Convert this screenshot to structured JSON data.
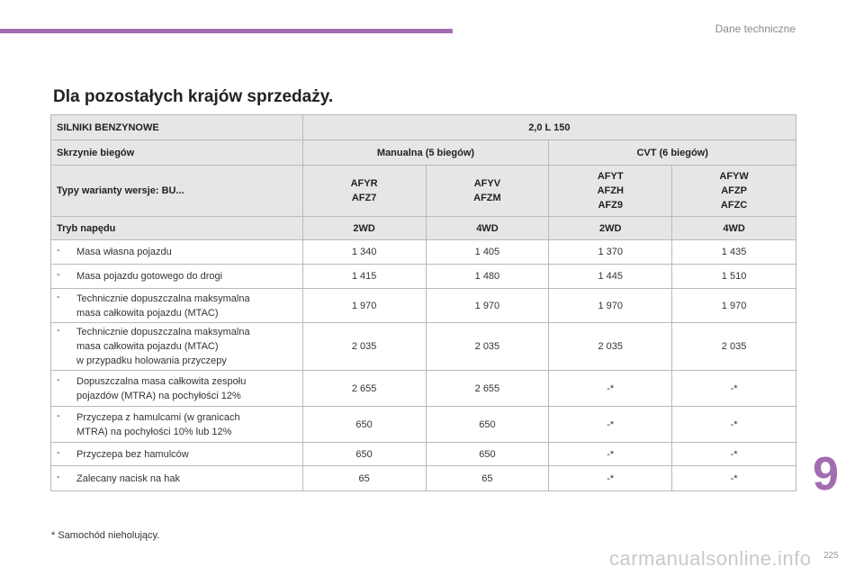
{
  "header": {
    "section": "Dane techniczne"
  },
  "heading": "Dla pozostałych krajów sprzedaży.",
  "table": {
    "r1": {
      "label": "SILNIKI BENZYNOWE",
      "engine": "2,0 L 150"
    },
    "r2": {
      "label": "Skrzynie biegów",
      "manual": "Manualna (5 biegów)",
      "cvt": "CVT (6 biegów)"
    },
    "r3": {
      "label": "Typy warianty wersje: BU...",
      "c1": [
        "AFYR",
        "AFZ7"
      ],
      "c2": [
        "AFYV",
        "AFZM"
      ],
      "c3": [
        "AFYT",
        "AFZH",
        "AFZ9"
      ],
      "c4": [
        "AFYW",
        "AFZP",
        "AFZC"
      ]
    },
    "r4": {
      "label": "Tryb napędu",
      "c": [
        "2WD",
        "4WD",
        "2WD",
        "4WD"
      ]
    },
    "rows": [
      {
        "dash": "-",
        "lines": [
          "Masa własna pojazdu"
        ],
        "v": [
          "1 340",
          "1 405",
          "1 370",
          "1 435"
        ]
      },
      {
        "dash": "-",
        "lines": [
          "Masa pojazdu gotowego do drogi"
        ],
        "v": [
          "1 415",
          "1 480",
          "1 445",
          "1 510"
        ]
      },
      {
        "dash": "-",
        "lines": [
          "Technicznie dopuszczalna maksymalna",
          "masa całkowita pojazdu (MTAC)"
        ],
        "v": [
          "1 970",
          "1 970",
          "1 970",
          "1 970"
        ]
      },
      {
        "dash": "-",
        "lines": [
          "Technicznie dopuszczalna maksymalna",
          "masa całkowita pojazdu (MTAC)",
          "w przypadku holowania przyczepy"
        ],
        "v": [
          "2 035",
          "2 035",
          "2 035",
          "2 035"
        ]
      },
      {
        "dash": "-",
        "lines": [
          "Dopuszczalna masa całkowita zespołu",
          "pojazdów (MTRA) na pochyłości 12%"
        ],
        "v": [
          "2 655",
          "2 655",
          "-*",
          "-*"
        ]
      },
      {
        "dash": "-",
        "lines": [
          "Przyczepa z hamulcami (w granicach",
          "MTRA) na pochyłości 10% lub 12%"
        ],
        "v": [
          "650",
          "650",
          "-*",
          "-*"
        ]
      },
      {
        "dash": "-",
        "lines": [
          "Przyczepa bez hamulców"
        ],
        "v": [
          "650",
          "650",
          "-*",
          "-*"
        ]
      },
      {
        "dash": "-",
        "lines": [
          "Zalecany nacisk na hak"
        ],
        "v": [
          "65",
          "65",
          "-*",
          "-*"
        ]
      }
    ]
  },
  "footnote": "* Samochód nieholujący.",
  "chapter_number": "9",
  "page_number": "225",
  "watermark": "carmanualsonline.info",
  "colors": {
    "accent": "#a36cb0",
    "header_bg": "#e6e6e6",
    "border": "#b9b9b9"
  }
}
